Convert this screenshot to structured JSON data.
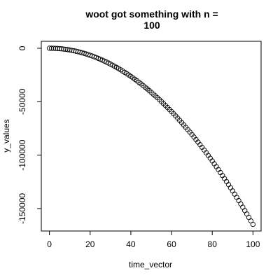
{
  "chart_data": {
    "type": "scatter",
    "title_lines": [
      "woot got something with n =",
      "100"
    ],
    "xlabel": "time_vector",
    "ylabel": "y_values",
    "x_ticks": [
      0,
      20,
      40,
      60,
      80,
      100
    ],
    "x_tick_labels": [
      "0",
      "20",
      "40",
      "60",
      "80",
      "100"
    ],
    "y_ticks": [
      0,
      -50000,
      -100000,
      -150000
    ],
    "y_tick_labels": [
      "0",
      "-50000",
      "-100000",
      "-150000"
    ],
    "xlim": [
      -4,
      104
    ],
    "ylim": [
      -171000,
      6500
    ],
    "series": [
      {
        "marker": "open-circle",
        "x": [
          0,
          1,
          2,
          3,
          4,
          5,
          6,
          7,
          8,
          9,
          10,
          11,
          12,
          13,
          14,
          15,
          16,
          17,
          18,
          19,
          20,
          21,
          22,
          23,
          24,
          25,
          26,
          27,
          28,
          29,
          30,
          31,
          32,
          33,
          34,
          35,
          36,
          37,
          38,
          39,
          40,
          41,
          42,
          43,
          44,
          45,
          46,
          47,
          48,
          49,
          50,
          51,
          52,
          53,
          54,
          55,
          56,
          57,
          58,
          59,
          60,
          61,
          62,
          63,
          64,
          65,
          66,
          67,
          68,
          69,
          70,
          71,
          72,
          73,
          74,
          75,
          76,
          77,
          78,
          79,
          80,
          81,
          82,
          83,
          84,
          85,
          86,
          87,
          88,
          89,
          90,
          91,
          92,
          93,
          94,
          95,
          96,
          97,
          98,
          99,
          100
        ],
        "y": [
          0,
          -16,
          -66,
          -148,
          -264,
          -412,
          -593,
          -807,
          -1054,
          -1334,
          -1647,
          -1993,
          -2372,
          -2784,
          -3229,
          -3706,
          -4217,
          -4761,
          -5337,
          -5947,
          -6590,
          -7265,
          -7974,
          -8715,
          -9490,
          -10297,
          -11137,
          -12011,
          -12917,
          -13856,
          -14828,
          -15834,
          -16872,
          -17943,
          -19047,
          -20184,
          -21355,
          -22558,
          -23794,
          -25063,
          -26365,
          -27700,
          -29068,
          -30469,
          -31903,
          -33370,
          -34869,
          -36402,
          -37968,
          -39567,
          -41189,
          -42863,
          -44561,
          -46291,
          -48055,
          -49851,
          -51681,
          -53543,
          -55439,
          -57367,
          -59328,
          -61323,
          -63350,
          -65410,
          -67504,
          -69630,
          -71789,
          -73982,
          -76207,
          -78465,
          -80757,
          -83081,
          -85438,
          -87828,
          -90252,
          -92708,
          -95197,
          -97720,
          -100275,
          -102863,
          -105485,
          -108139,
          -110826,
          -113547,
          -116300,
          -119086,
          -121906,
          -124758,
          -127643,
          -130562,
          -133513,
          -136498,
          -139515,
          -142565,
          -145649,
          -148765,
          -151915,
          -155097,
          -158312,
          -161561,
          -164842
        ]
      }
    ]
  }
}
